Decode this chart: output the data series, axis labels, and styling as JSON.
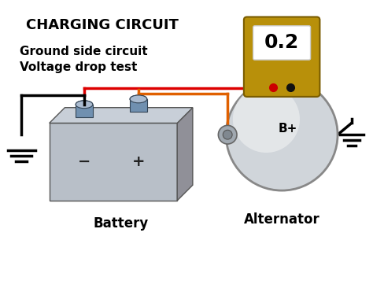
{
  "title": "CHARGING CIRCUIT",
  "subtitle_line1": "Ground side circuit",
  "subtitle_line2": "Voltage drop test",
  "meter_value": "0.2",
  "battery_label": "Battery",
  "alternator_label": "Alternator",
  "alternator_terminal": "B+",
  "bg_color": "#ffffff",
  "wire_color_orange": "#e06000",
  "wire_color_red": "#dd0000",
  "wire_color_black": "#111111",
  "meter_body_color": "#b8900a",
  "battery_color_main": "#b8bfc8",
  "battery_color_top": "#c8cfd8",
  "battery_color_side": "#909098",
  "alternator_color": "#d0d5da",
  "terminal_color": "#7090b0",
  "title_fontsize": 13,
  "subtitle_fontsize": 11,
  "label_fontsize": 12
}
